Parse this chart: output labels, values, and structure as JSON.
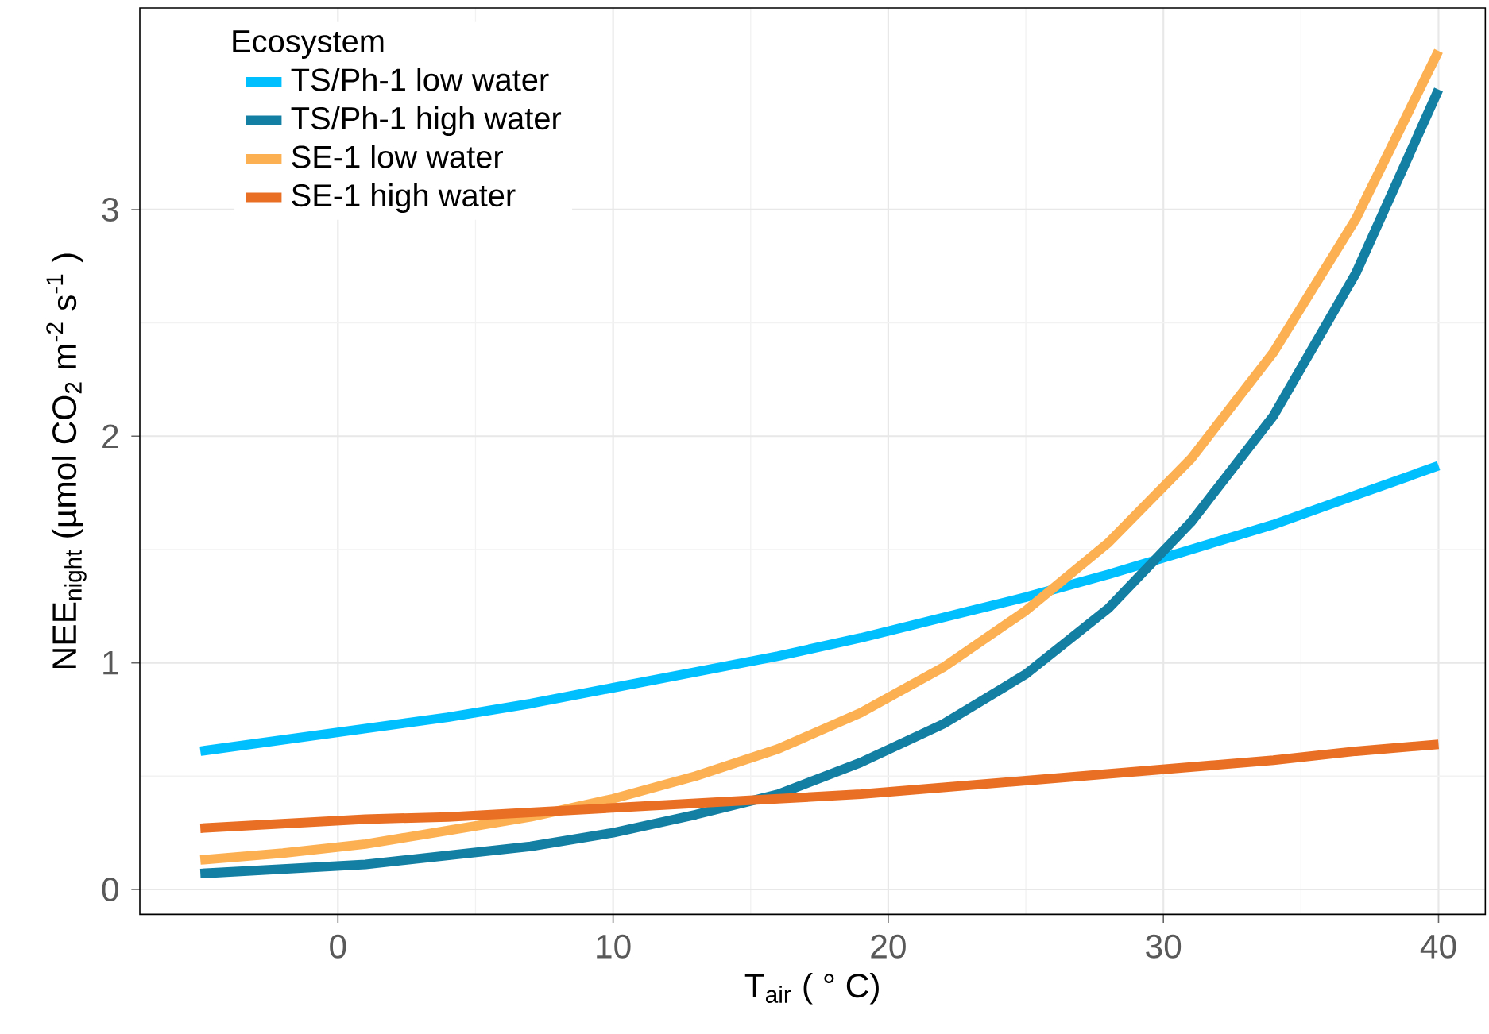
{
  "chart_data": {
    "type": "line",
    "xlabel": "T$_{air}$ ( ° C)",
    "ylabel": "NEE$_{night}$ (µmol CO$_{2}$ m$^{-2}$ s$^{-1}$ )",
    "legend_title": "Ecosystem",
    "x": [
      -5,
      -2,
      1,
      4,
      7,
      10,
      13,
      16,
      19,
      22,
      25,
      28,
      31,
      34,
      37,
      40
    ],
    "series": [
      {
        "name": "TS/Ph-1 low water",
        "color": "#00bfff",
        "values": [
          0.61,
          0.66,
          0.71,
          0.76,
          0.82,
          0.89,
          0.96,
          1.03,
          1.11,
          1.2,
          1.29,
          1.39,
          1.5,
          1.61,
          1.74,
          1.87
        ]
      },
      {
        "name": "TS/Ph-1 high water",
        "color": "#127fa3",
        "values": [
          0.07,
          0.09,
          0.11,
          0.15,
          0.19,
          0.25,
          0.33,
          0.42,
          0.56,
          0.73,
          0.95,
          1.24,
          1.62,
          2.09,
          2.72,
          3.53
        ]
      },
      {
        "name": "SE-1 low water",
        "color": "#fdb052",
        "values": [
          0.13,
          0.16,
          0.2,
          0.26,
          0.32,
          0.4,
          0.5,
          0.62,
          0.78,
          0.98,
          1.23,
          1.53,
          1.9,
          2.37,
          2.96,
          3.7
        ]
      },
      {
        "name": "SE-1 high water",
        "color": "#e96f25",
        "values": [
          0.27,
          0.29,
          0.31,
          0.32,
          0.34,
          0.36,
          0.38,
          0.4,
          0.42,
          0.45,
          0.48,
          0.51,
          0.54,
          0.57,
          0.61,
          0.64
        ]
      }
    ],
    "xlim": [
      -7.2,
      41.7
    ],
    "ylim": [
      -0.11,
      3.89
    ],
    "xticks": [
      0,
      10,
      20,
      30,
      40
    ],
    "yticks": [
      0,
      1,
      2,
      3
    ],
    "grid": true,
    "legend": "top left"
  }
}
